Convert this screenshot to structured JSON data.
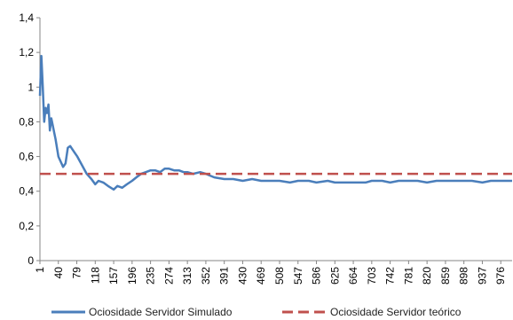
{
  "chart_data": {
    "type": "line",
    "title": "",
    "xlabel": "",
    "ylabel": "",
    "ylim": [
      0,
      1.4
    ],
    "yticks": [
      "0",
      "0,2",
      "0,4",
      "0,6",
      "0,8",
      "1",
      "1,2",
      "1,4"
    ],
    "xticks": [
      "1",
      "40",
      "79",
      "118",
      "157",
      "196",
      "235",
      "274",
      "313",
      "352",
      "391",
      "430",
      "469",
      "508",
      "547",
      "586",
      "625",
      "664",
      "703",
      "742",
      "781",
      "820",
      "859",
      "898",
      "937",
      "976"
    ],
    "xlim": [
      1,
      1000
    ],
    "grid": false,
    "legend_position": "bottom",
    "series": [
      {
        "name": "Ociosidade Servidor Simulado",
        "color": "#4a7ebb",
        "style": "solid",
        "x": [
          1,
          4,
          7,
          10,
          13,
          16,
          19,
          22,
          25,
          28,
          31,
          34,
          37,
          40,
          45,
          50,
          55,
          60,
          65,
          70,
          75,
          80,
          90,
          100,
          110,
          118,
          125,
          135,
          145,
          157,
          165,
          175,
          185,
          196,
          205,
          215,
          225,
          235,
          245,
          255,
          265,
          274,
          285,
          295,
          305,
          313,
          325,
          340,
          352,
          370,
          391,
          410,
          430,
          450,
          469,
          490,
          508,
          530,
          547,
          570,
          586,
          610,
          625,
          645,
          664,
          690,
          703,
          725,
          742,
          760,
          781,
          800,
          820,
          840,
          859,
          880,
          898,
          915,
          937,
          955,
          976,
          1000
        ],
        "y": [
          0.95,
          1.18,
          1.0,
          0.8,
          0.88,
          0.85,
          0.9,
          0.75,
          0.82,
          0.78,
          0.74,
          0.7,
          0.65,
          0.6,
          0.57,
          0.54,
          0.56,
          0.65,
          0.66,
          0.64,
          0.62,
          0.6,
          0.55,
          0.5,
          0.47,
          0.44,
          0.46,
          0.45,
          0.43,
          0.41,
          0.43,
          0.42,
          0.44,
          0.46,
          0.48,
          0.5,
          0.51,
          0.52,
          0.52,
          0.51,
          0.53,
          0.53,
          0.52,
          0.52,
          0.51,
          0.51,
          0.5,
          0.51,
          0.5,
          0.48,
          0.47,
          0.47,
          0.46,
          0.47,
          0.46,
          0.46,
          0.46,
          0.45,
          0.46,
          0.46,
          0.45,
          0.46,
          0.45,
          0.45,
          0.45,
          0.45,
          0.46,
          0.46,
          0.45,
          0.46,
          0.46,
          0.46,
          0.45,
          0.46,
          0.46,
          0.46,
          0.46,
          0.46,
          0.45,
          0.46,
          0.46,
          0.46
        ]
      },
      {
        "name": "Ociosidade Servidor teórico",
        "color": "#c0504d",
        "style": "dashed",
        "x": [
          1,
          1000
        ],
        "y": [
          0.5,
          0.5
        ]
      }
    ]
  }
}
